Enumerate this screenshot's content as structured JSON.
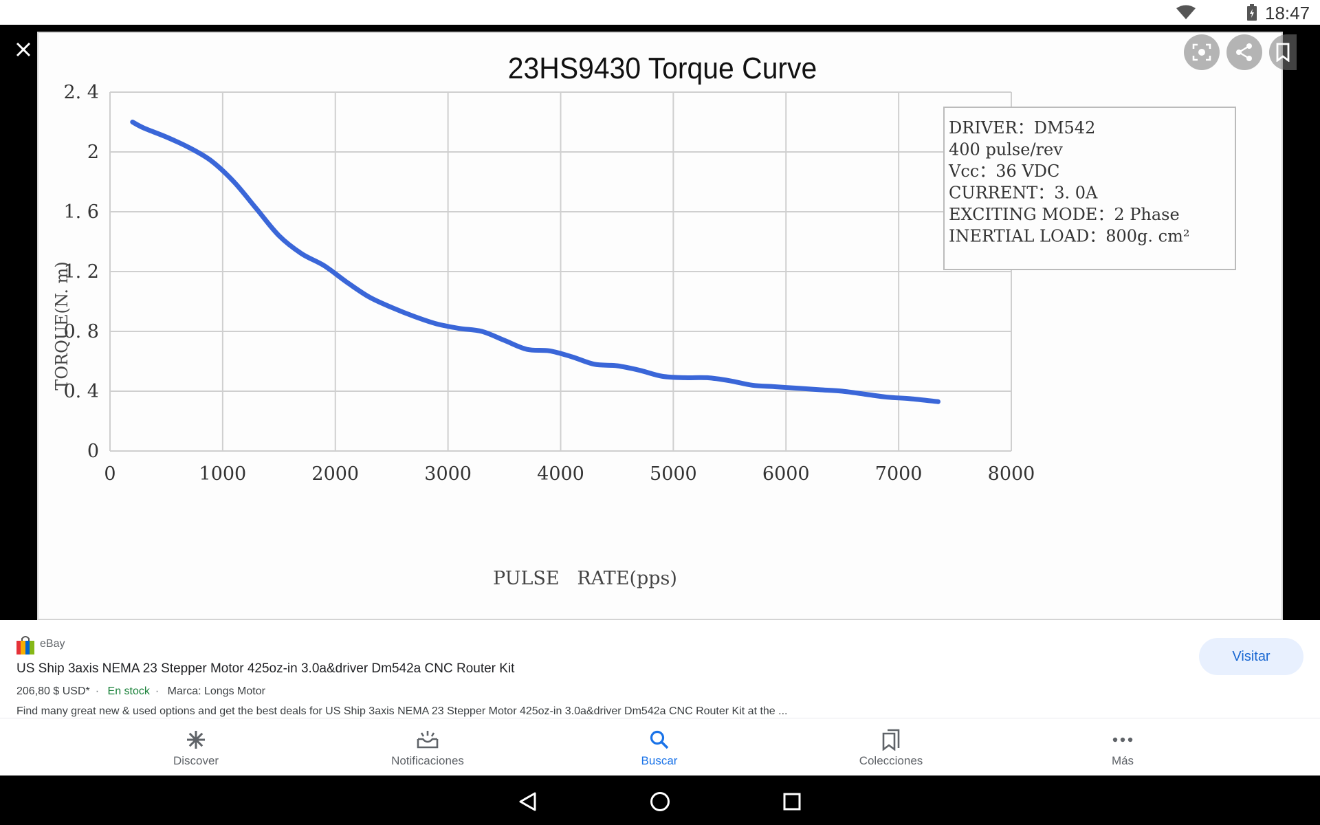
{
  "status_bar": {
    "time": "18:47",
    "icons": [
      "wifi-icon",
      "battery-icon"
    ]
  },
  "viewer": {
    "close_icon": "close-icon",
    "actions": [
      "lens-icon",
      "share-icon",
      "bookmark-icon"
    ]
  },
  "chart_data": {
    "type": "line",
    "title": "23HS9430 Torque Curve",
    "xlabel": "PULSE   RATE(pps)",
    "ylabel": "TORQUE(N. m)",
    "xlim": [
      0,
      8000
    ],
    "ylim": [
      0,
      2.4
    ],
    "x_ticks": [
      "0",
      "1000",
      "2000",
      "3000",
      "4000",
      "5000",
      "6000",
      "7000",
      "8000"
    ],
    "y_ticks": [
      "0",
      "0. 4",
      "0. 8",
      "1. 2",
      "1. 6",
      "2",
      "2. 4"
    ],
    "grid": true,
    "series": [
      {
        "color": "#3a66d8",
        "x": [
          200,
          300,
          500,
          700,
          900,
          1100,
          1300,
          1500,
          1700,
          1900,
          2100,
          2300,
          2500,
          2700,
          2900,
          3100,
          3300,
          3500,
          3700,
          3900,
          4100,
          4300,
          4500,
          4700,
          4900,
          5100,
          5300,
          5500,
          5700,
          5900,
          6100,
          6300,
          6500,
          6700,
          6900,
          7100,
          7350
        ],
        "y": [
          2.2,
          2.16,
          2.1,
          2.03,
          1.94,
          1.8,
          1.62,
          1.44,
          1.32,
          1.24,
          1.13,
          1.03,
          0.96,
          0.9,
          0.85,
          0.82,
          0.8,
          0.74,
          0.68,
          0.67,
          0.63,
          0.58,
          0.57,
          0.54,
          0.5,
          0.49,
          0.49,
          0.47,
          0.44,
          0.43,
          0.42,
          0.41,
          0.4,
          0.38,
          0.36,
          0.35,
          0.33
        ]
      }
    ],
    "annotation_lines": [
      "DRIVER：DM542",
      "400  pulse/rev",
      "Vcc：36 VDC",
      "CURRENT：3. 0A",
      "EXCITING MODE：2 Phase",
      "INERTIAL LOAD：800g. cm²"
    ],
    "legend_placement": "top-right"
  },
  "source": {
    "site": "eBay",
    "title": "US Ship 3axis NEMA 23 Stepper Motor 425oz-in 3.0a&driver Dm542a CNC Router Kit",
    "price": "206,80 $ USD*",
    "stock": "En stock",
    "brand": "Marca: Longs Motor",
    "description": "Find many great new & used options and get the best deals for US Ship 3axis NEMA 23 Stepper Motor 425oz-in 3.0a&driver Dm542a CNC Router Kit at the ...",
    "visit_label": "Visitar"
  },
  "bottom_nav": {
    "items": [
      {
        "label": "Discover",
        "icon": "asterisk-icon"
      },
      {
        "label": "Notificaciones",
        "icon": "inbox-icon"
      },
      {
        "label": "Buscar",
        "icon": "search-icon",
        "active": true
      },
      {
        "label": "Colecciones",
        "icon": "collections-icon"
      },
      {
        "label": "Más",
        "icon": "more-icon"
      }
    ]
  },
  "system_nav": [
    "back-icon",
    "home-icon",
    "recents-icon"
  ]
}
